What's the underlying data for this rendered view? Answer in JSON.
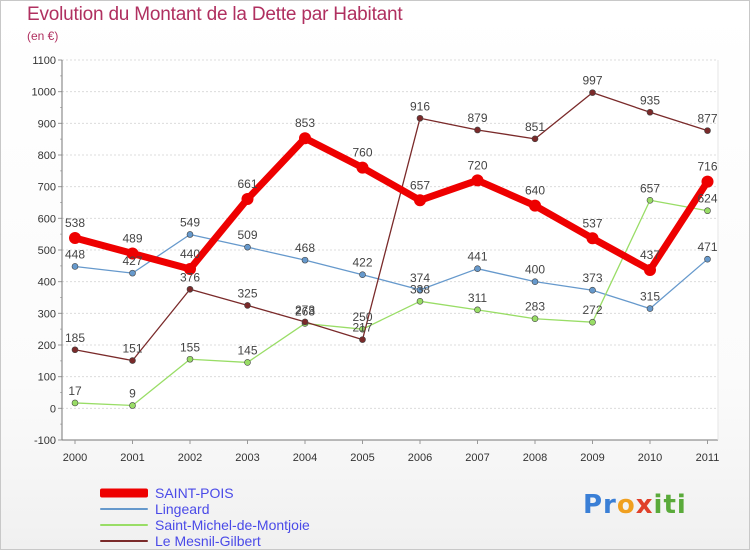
{
  "header": {
    "title": "Evolution du Montant de la Dette par Habitant",
    "unit": "(en €)"
  },
  "logo": {
    "text": "Proxiti"
  },
  "chart_data": {
    "type": "line",
    "title": "Evolution du Montant de la Dette par Habitant",
    "ylabel": "(en €)",
    "xlabel": "",
    "ylim": [
      -100,
      1100
    ],
    "yticks": [
      -100,
      0,
      100,
      200,
      300,
      400,
      500,
      600,
      700,
      800,
      900,
      1000,
      1100
    ],
    "x": [
      "2000",
      "2001",
      "2002",
      "2003",
      "2004",
      "2005",
      "2006",
      "2007",
      "2008",
      "2009",
      "2010",
      "2011"
    ],
    "grid": "horizontal",
    "legend_position": "bottom-left",
    "series": [
      {
        "name": "SAINT-POIS",
        "color": "#ee0000",
        "emphasis": true,
        "values": [
          538,
          489,
          440,
          661,
          853,
          760,
          657,
          720,
          640,
          537,
          437,
          716
        ]
      },
      {
        "name": "Lingeard",
        "color": "#6699cc",
        "values": [
          448,
          427,
          549,
          509,
          468,
          422,
          374,
          441,
          400,
          373,
          315,
          471
        ]
      },
      {
        "name": "Saint-Michel-de-Montjoie",
        "color": "#99dd66",
        "values": [
          17,
          9,
          155,
          145,
          268,
          250,
          338,
          311,
          283,
          272,
          657,
          624
        ]
      },
      {
        "name": "Le Mesnil-Gilbert",
        "color": "#7a2a2a",
        "values": [
          185,
          151,
          376,
          325,
          273,
          217,
          916,
          879,
          851,
          997,
          935,
          877
        ]
      }
    ]
  }
}
